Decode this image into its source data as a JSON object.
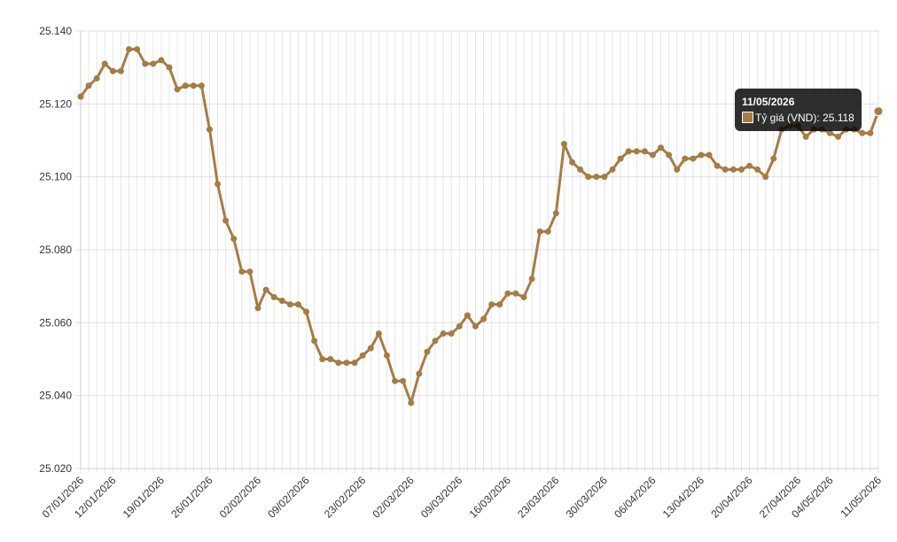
{
  "chart_data": {
    "type": "line",
    "categories": [
      "07/01/2026",
      null,
      null,
      null,
      "12/01/2026",
      null,
      null,
      null,
      null,
      null,
      "19/01/2026",
      null,
      null,
      null,
      null,
      null,
      "26/01/2026",
      null,
      null,
      null,
      null,
      null,
      "02/02/2026",
      null,
      null,
      null,
      null,
      null,
      "09/02/2026",
      null,
      null,
      null,
      null,
      null,
      null,
      "23/02/2026",
      null,
      null,
      null,
      null,
      null,
      "02/03/2026",
      null,
      null,
      null,
      null,
      null,
      "09/03/2026",
      null,
      null,
      null,
      null,
      null,
      "16/03/2026",
      null,
      null,
      null,
      null,
      null,
      "23/03/2026",
      null,
      null,
      null,
      null,
      null,
      "30/03/2026",
      null,
      null,
      null,
      null,
      null,
      "06/04/2026",
      null,
      null,
      null,
      null,
      null,
      "13/04/2026",
      null,
      null,
      null,
      null,
      null,
      "20/04/2026",
      null,
      null,
      null,
      null,
      null,
      "27/04/2026",
      null,
      null,
      null,
      "04/05/2026",
      null,
      null,
      null,
      null,
      null,
      "11/05/2026"
    ],
    "series": [
      {
        "name": "Tỷ giá (VND)",
        "color": "#a67c45",
        "values": [
          25.122,
          25.125,
          25.127,
          25.131,
          25.129,
          25.129,
          25.135,
          25.135,
          25.131,
          25.131,
          25.132,
          25.13,
          25.124,
          25.125,
          25.125,
          25.125,
          25.113,
          25.098,
          25.088,
          25.083,
          25.074,
          25.074,
          25.064,
          25.069,
          25.067,
          25.066,
          25.065,
          25.065,
          25.063,
          25.055,
          25.05,
          25.05,
          25.049,
          25.049,
          25.049,
          25.051,
          25.053,
          25.057,
          25.051,
          25.044,
          25.044,
          25.038,
          25.046,
          25.052,
          25.055,
          25.057,
          25.057,
          25.059,
          25.062,
          25.059,
          25.061,
          25.065,
          25.065,
          25.068,
          25.068,
          25.067,
          25.072,
          25.085,
          25.085,
          25.09,
          25.109,
          25.104,
          25.102,
          25.1,
          25.1,
          25.1,
          25.102,
          25.105,
          25.107,
          25.107,
          25.107,
          25.106,
          25.108,
          25.106,
          25.102,
          25.105,
          25.105,
          25.106,
          25.106,
          25.103,
          25.102,
          25.102,
          25.102,
          25.103,
          25.102,
          25.1,
          25.105,
          25.113,
          25.114,
          25.114,
          25.111,
          25.113,
          25.113,
          25.112,
          25.111,
          25.113,
          25.113,
          25.112,
          25.112,
          25.118
        ]
      }
    ],
    "ylim": [
      25.02,
      25.14
    ],
    "yticks": [
      {
        "value": 25.02,
        "label": "25.020"
      },
      {
        "value": 25.04,
        "label": "25.040"
      },
      {
        "value": 25.06,
        "label": "25.060"
      },
      {
        "value": 25.08,
        "label": "25.080"
      },
      {
        "value": 25.1,
        "label": "25.100"
      },
      {
        "value": 25.12,
        "label": "25.120"
      },
      {
        "value": 25.14,
        "label": "25.140"
      }
    ],
    "grid": true,
    "tooltip_index": 99
  }
}
